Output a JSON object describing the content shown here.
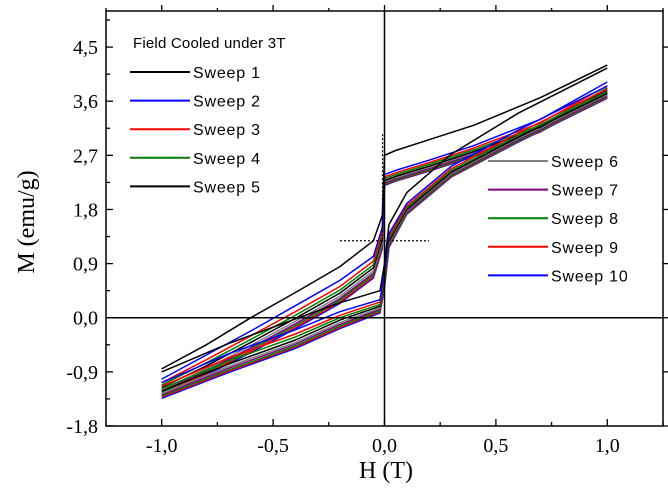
{
  "chart_data": {
    "type": "line",
    "title": "",
    "legend_title": "Field Cooled under 3T",
    "xlabel": "H (T)",
    "ylabel": "M (emu/g)",
    "xlim": [
      -1.25,
      1.25
    ],
    "ylim": [
      -1.8,
      5.1
    ],
    "x_ticks": [
      -1.0,
      -0.5,
      0.0,
      0.5,
      1.0
    ],
    "x_tick_labels": [
      "-1,0",
      "-0,5",
      "0,0",
      "0,5",
      "1,0"
    ],
    "y_ticks": [
      -1.8,
      -0.9,
      0.0,
      0.9,
      1.8,
      2.7,
      3.6,
      4.5
    ],
    "y_tick_labels": [
      "-1,8",
      "-0,9",
      "0,0",
      "0,9",
      "1,8",
      "2,7",
      "3,6",
      "4,5"
    ],
    "grid": false,
    "legend_placement": [
      "top-left",
      "center-right"
    ],
    "series": [
      {
        "name": "Sweep 1",
        "color": "#000000",
        "legend_group": 0,
        "upper": [
          [
            -1.0,
            -0.85
          ],
          [
            -0.8,
            -0.45
          ],
          [
            -0.6,
            0.0
          ],
          [
            -0.4,
            0.42
          ],
          [
            -0.2,
            0.85
          ],
          [
            -0.05,
            1.28
          ],
          [
            -0.01,
            1.7
          ],
          [
            0.0,
            2.7
          ],
          [
            0.05,
            2.78
          ],
          [
            0.2,
            2.96
          ],
          [
            0.4,
            3.2
          ],
          [
            0.7,
            3.66
          ],
          [
            1.0,
            4.2
          ]
        ],
        "lower": [
          [
            -1.0,
            -0.9
          ],
          [
            -0.7,
            -0.43
          ],
          [
            -0.4,
            -0.02
          ],
          [
            -0.2,
            0.25
          ],
          [
            -0.02,
            0.45
          ],
          [
            0.0,
            0.9
          ],
          [
            0.02,
            1.55
          ],
          [
            0.1,
            2.08
          ],
          [
            0.3,
            2.72
          ],
          [
            0.6,
            3.4
          ],
          [
            1.0,
            4.15
          ]
        ]
      },
      {
        "name": "Sweep 2",
        "color": "#0000ff",
        "legend_group": 0,
        "upper": [
          [
            -1.0,
            -1.02
          ],
          [
            -0.8,
            -0.62
          ],
          [
            -0.6,
            -0.22
          ],
          [
            -0.4,
            0.2
          ],
          [
            -0.2,
            0.62
          ],
          [
            -0.05,
            1.02
          ],
          [
            -0.01,
            1.5
          ],
          [
            0.0,
            2.38
          ],
          [
            0.05,
            2.45
          ],
          [
            0.2,
            2.62
          ],
          [
            0.4,
            2.86
          ],
          [
            0.7,
            3.3
          ],
          [
            1.0,
            3.92
          ]
        ],
        "lower": [
          [
            -1.0,
            -1.08
          ],
          [
            -0.7,
            -0.6
          ],
          [
            -0.4,
            -0.2
          ],
          [
            -0.2,
            0.1
          ],
          [
            -0.02,
            0.3
          ],
          [
            0.0,
            0.75
          ],
          [
            0.02,
            1.4
          ],
          [
            0.1,
            1.9
          ],
          [
            0.3,
            2.52
          ],
          [
            0.6,
            3.12
          ],
          [
            1.0,
            3.85
          ]
        ]
      },
      {
        "name": "Sweep 3",
        "color": "#ff0000",
        "legend_group": 0,
        "upper": [
          [
            -1.0,
            -1.08
          ],
          [
            -0.8,
            -0.7
          ],
          [
            -0.6,
            -0.3
          ],
          [
            -0.4,
            0.1
          ],
          [
            -0.2,
            0.52
          ],
          [
            -0.05,
            0.94
          ],
          [
            -0.01,
            1.42
          ],
          [
            0.0,
            2.34
          ],
          [
            0.05,
            2.41
          ],
          [
            0.2,
            2.58
          ],
          [
            0.4,
            2.82
          ],
          [
            0.7,
            3.24
          ],
          [
            1.0,
            3.86
          ]
        ],
        "lower": [
          [
            -1.0,
            -1.14
          ],
          [
            -0.7,
            -0.67
          ],
          [
            -0.4,
            -0.27
          ],
          [
            -0.2,
            0.04
          ],
          [
            -0.02,
            0.26
          ],
          [
            0.0,
            0.7
          ],
          [
            0.02,
            1.35
          ],
          [
            0.1,
            1.86
          ],
          [
            0.3,
            2.48
          ],
          [
            0.6,
            3.07
          ],
          [
            1.0,
            3.8
          ]
        ]
      },
      {
        "name": "Sweep 4",
        "color": "#008000",
        "legend_group": 0,
        "upper": [
          [
            -1.0,
            -1.12
          ],
          [
            -0.8,
            -0.75
          ],
          [
            -0.6,
            -0.36
          ],
          [
            -0.4,
            0.04
          ],
          [
            -0.2,
            0.46
          ],
          [
            -0.05,
            0.88
          ],
          [
            -0.01,
            1.36
          ],
          [
            0.0,
            2.31
          ],
          [
            0.05,
            2.38
          ],
          [
            0.2,
            2.55
          ],
          [
            0.4,
            2.79
          ],
          [
            0.7,
            3.2
          ],
          [
            1.0,
            3.82
          ]
        ],
        "lower": [
          [
            -1.0,
            -1.18
          ],
          [
            -0.7,
            -0.72
          ],
          [
            -0.4,
            -0.32
          ],
          [
            -0.2,
            0.0
          ],
          [
            -0.02,
            0.22
          ],
          [
            0.0,
            0.66
          ],
          [
            0.02,
            1.31
          ],
          [
            0.1,
            1.83
          ],
          [
            0.3,
            2.45
          ],
          [
            0.6,
            3.03
          ],
          [
            1.0,
            3.76
          ]
        ]
      },
      {
        "name": "Sweep 5",
        "color": "#000000",
        "legend_group": 0,
        "upper": [
          [
            -1.0,
            -1.16
          ],
          [
            -0.8,
            -0.8
          ],
          [
            -0.6,
            -0.41
          ],
          [
            -0.4,
            -0.01
          ],
          [
            -0.2,
            0.41
          ],
          [
            -0.05,
            0.83
          ],
          [
            -0.01,
            1.3
          ],
          [
            0.0,
            2.28
          ],
          [
            0.05,
            2.35
          ],
          [
            0.2,
            2.52
          ],
          [
            0.4,
            2.76
          ],
          [
            0.7,
            3.17
          ],
          [
            1.0,
            3.79
          ]
        ],
        "lower": [
          [
            -1.0,
            -1.22
          ],
          [
            -0.7,
            -0.77
          ],
          [
            -0.4,
            -0.37
          ],
          [
            -0.2,
            -0.04
          ],
          [
            -0.02,
            0.19
          ],
          [
            0.0,
            0.62
          ],
          [
            0.02,
            1.27
          ],
          [
            0.1,
            1.8
          ],
          [
            0.3,
            2.42
          ],
          [
            0.6,
            3.0
          ],
          [
            1.0,
            3.73
          ]
        ]
      },
      {
        "name": "Sweep 6",
        "color": "#808080",
        "legend_group": 1,
        "upper": [
          [
            -1.0,
            -1.2
          ],
          [
            -0.8,
            -0.85
          ],
          [
            -0.6,
            -0.46
          ],
          [
            -0.4,
            -0.06
          ],
          [
            -0.2,
            0.36
          ],
          [
            -0.05,
            0.78
          ],
          [
            -0.01,
            1.25
          ],
          [
            0.0,
            2.26
          ],
          [
            0.05,
            2.33
          ],
          [
            0.2,
            2.5
          ],
          [
            0.4,
            2.74
          ],
          [
            0.7,
            3.15
          ],
          [
            1.0,
            3.77
          ]
        ],
        "lower": [
          [
            -1.0,
            -1.26
          ],
          [
            -0.7,
            -0.81
          ],
          [
            -0.4,
            -0.41
          ],
          [
            -0.2,
            -0.08
          ],
          [
            -0.02,
            0.16
          ],
          [
            0.0,
            0.58
          ],
          [
            0.02,
            1.24
          ],
          [
            0.1,
            1.78
          ],
          [
            0.3,
            2.4
          ],
          [
            0.6,
            2.98
          ],
          [
            1.0,
            3.71
          ]
        ]
      },
      {
        "name": "Sweep 7",
        "color": "#800080",
        "legend_group": 1,
        "upper": [
          [
            -1.0,
            -1.22
          ],
          [
            -0.8,
            -0.88
          ],
          [
            -0.6,
            -0.5
          ],
          [
            -0.4,
            -0.1
          ],
          [
            -0.2,
            0.32
          ],
          [
            -0.05,
            0.74
          ],
          [
            -0.01,
            1.22
          ],
          [
            0.0,
            2.24
          ],
          [
            0.05,
            2.31
          ],
          [
            0.2,
            2.48
          ],
          [
            0.4,
            2.72
          ],
          [
            0.7,
            3.13
          ],
          [
            1.0,
            3.75
          ]
        ],
        "lower": [
          [
            -1.0,
            -1.28
          ],
          [
            -0.7,
            -0.84
          ],
          [
            -0.4,
            -0.44
          ],
          [
            -0.2,
            -0.11
          ],
          [
            -0.02,
            0.14
          ],
          [
            0.0,
            0.55
          ],
          [
            0.02,
            1.22
          ],
          [
            0.1,
            1.76
          ],
          [
            0.3,
            2.38
          ],
          [
            0.6,
            2.96
          ],
          [
            1.0,
            3.69
          ]
        ]
      },
      {
        "name": "Sweep 8",
        "color": "#008000",
        "legend_group": 1,
        "upper": [
          [
            -1.0,
            -1.24
          ],
          [
            -0.8,
            -0.9
          ],
          [
            -0.6,
            -0.53
          ],
          [
            -0.4,
            -0.13
          ],
          [
            -0.2,
            0.29
          ],
          [
            -0.05,
            0.71
          ],
          [
            -0.01,
            1.19
          ],
          [
            0.0,
            2.22
          ],
          [
            0.05,
            2.29
          ],
          [
            0.2,
            2.46
          ],
          [
            0.4,
            2.7
          ],
          [
            0.7,
            3.11
          ],
          [
            1.0,
            3.73
          ]
        ],
        "lower": [
          [
            -1.0,
            -1.3
          ],
          [
            -0.7,
            -0.87
          ],
          [
            -0.4,
            -0.47
          ],
          [
            -0.2,
            -0.14
          ],
          [
            -0.02,
            0.12
          ],
          [
            0.0,
            0.53
          ],
          [
            0.02,
            1.2
          ],
          [
            0.1,
            1.74
          ],
          [
            0.3,
            2.36
          ],
          [
            0.6,
            2.94
          ],
          [
            1.0,
            3.67
          ]
        ]
      },
      {
        "name": "Sweep 9",
        "color": "#ff0000",
        "legend_group": 1,
        "upper": [
          [
            -1.0,
            -1.26
          ],
          [
            -0.8,
            -0.93
          ],
          [
            -0.6,
            -0.56
          ],
          [
            -0.4,
            -0.16
          ],
          [
            -0.2,
            0.26
          ],
          [
            -0.05,
            0.68
          ],
          [
            -0.01,
            1.16
          ],
          [
            0.0,
            2.21
          ],
          [
            0.05,
            2.28
          ],
          [
            0.2,
            2.45
          ],
          [
            0.4,
            2.69
          ],
          [
            0.7,
            3.1
          ],
          [
            1.0,
            3.72
          ]
        ],
        "lower": [
          [
            -1.0,
            -1.32
          ],
          [
            -0.7,
            -0.89
          ],
          [
            -0.4,
            -0.49
          ],
          [
            -0.2,
            -0.16
          ],
          [
            -0.02,
            0.1
          ],
          [
            0.0,
            0.51
          ],
          [
            0.02,
            1.18
          ],
          [
            0.1,
            1.73
          ],
          [
            0.3,
            2.35
          ],
          [
            0.6,
            2.93
          ],
          [
            1.0,
            3.66
          ]
        ]
      },
      {
        "name": "Sweep 10",
        "color": "#0000ff",
        "legend_group": 1,
        "upper": [
          [
            -1.0,
            -1.28
          ],
          [
            -0.8,
            -0.95
          ],
          [
            -0.6,
            -0.58
          ],
          [
            -0.4,
            -0.18
          ],
          [
            -0.2,
            0.24
          ],
          [
            -0.05,
            0.66
          ],
          [
            -0.01,
            1.14
          ],
          [
            0.0,
            2.2
          ],
          [
            0.05,
            2.27
          ],
          [
            0.2,
            2.44
          ],
          [
            0.4,
            2.68
          ],
          [
            0.7,
            3.09
          ],
          [
            1.0,
            3.71
          ]
        ],
        "lower": [
          [
            -1.0,
            -1.34
          ],
          [
            -0.7,
            -0.91
          ],
          [
            -0.4,
            -0.51
          ],
          [
            -0.2,
            -0.18
          ],
          [
            -0.02,
            0.08
          ],
          [
            0.0,
            0.49
          ],
          [
            0.02,
            1.17
          ],
          [
            0.1,
            1.72
          ],
          [
            0.3,
            2.34
          ],
          [
            0.6,
            2.92
          ],
          [
            1.0,
            3.65
          ]
        ]
      }
    ]
  }
}
